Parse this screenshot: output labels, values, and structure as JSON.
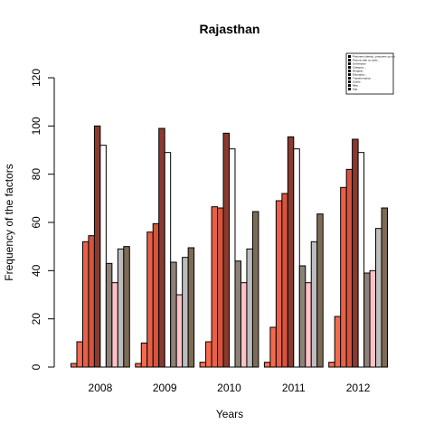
{
  "chart_data": {
    "type": "bar",
    "title": "Rajasthan",
    "xlabel": "Years",
    "ylabel": "Frequency of the factors",
    "ylim": [
      0,
      120
    ],
    "yticks": [
      0,
      20,
      40,
      60,
      80,
      100,
      120
    ],
    "categories": [
      "2008",
      "2009",
      "2010",
      "2011",
      "2012"
    ],
    "legend_position": "top-right",
    "series": [
      {
        "name": "Prisoners identity...prisoners op mit",
        "color": "#ff6e4f",
        "values": [
          1.5,
          1.5,
          2,
          2,
          2
        ]
      },
      {
        "name": "Prisons with no toilet...",
        "color": "#f5694c",
        "values": [
          10.5,
          10,
          10.5,
          16.5,
          21
        ]
      },
      {
        "name": "Generation",
        "color": "#e86048",
        "values": [
          52,
          56,
          66.5,
          69,
          74.5
        ]
      },
      {
        "name": "Category...",
        "color": "#d4543e",
        "values": [
          54.5,
          59.5,
          66,
          72,
          82
        ]
      },
      {
        "name": "Rehabili...",
        "color": "#8b3a2f",
        "values": [
          100,
          99,
          97,
          95.5,
          94.5
        ]
      },
      {
        "name": "Education...",
        "color": "#ffffff",
        "values": [
          92,
          89,
          90.5,
          90.5,
          89
        ]
      },
      {
        "name": "Transformation",
        "color": "#8c8278",
        "values": [
          43,
          43.5,
          44,
          42,
          39
        ]
      },
      {
        "name": "Clothe",
        "color": "#ffc0c8",
        "values": [
          35,
          30,
          35,
          35,
          40
        ]
      },
      {
        "name": "Misc",
        "color": "#bdbdbd",
        "values": [
          49,
          45.5,
          49,
          52,
          57.5
        ]
      },
      {
        "name": "Age",
        "color": "#7d6b55",
        "values": [
          50,
          49.5,
          64.5,
          63.5,
          66
        ]
      }
    ]
  }
}
